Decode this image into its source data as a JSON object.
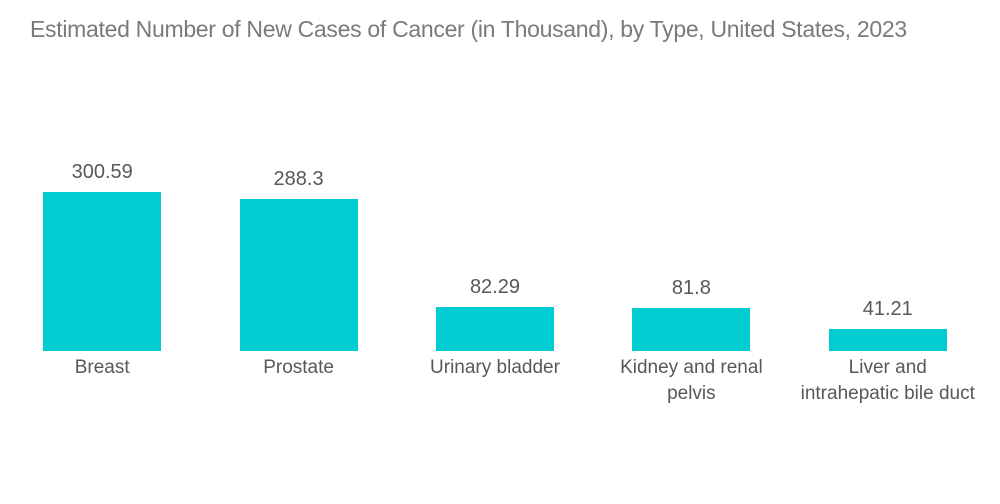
{
  "page": {
    "background": "#ffffff"
  },
  "chart_data": {
    "type": "bar",
    "title": "Estimated Number of New Cases of Cancer (in Thousand), by Type, United States, 2023",
    "categories": [
      "Breast",
      "Prostate",
      "Urinary bladder",
      "Kidney and renal pelvis",
      "Liver and intrahepatic bile duct"
    ],
    "category_lines": [
      [
        "Breast"
      ],
      [
        "Prostate"
      ],
      [
        "Urinary bladder"
      ],
      [
        "Kidney and renal",
        "pelvis"
      ],
      [
        "Liver and",
        "intrahepatic bile duct"
      ]
    ],
    "values": [
      300.59,
      288.3,
      82.29,
      81.8,
      41.21
    ],
    "value_labels": [
      "300.59",
      "288.3",
      "82.29",
      "81.8",
      "41.21"
    ],
    "xlabel": "",
    "ylabel": "",
    "unit": "Thousand",
    "legend_position": "none",
    "grid": false,
    "axes_visible": false,
    "ylim": [
      0,
      340
    ],
    "colors": {
      "bar": "#00CDD2",
      "title_text": "#7a7a7e",
      "value_text": "#55585c",
      "category_text": "#55585c",
      "background": "#ffffff"
    }
  }
}
